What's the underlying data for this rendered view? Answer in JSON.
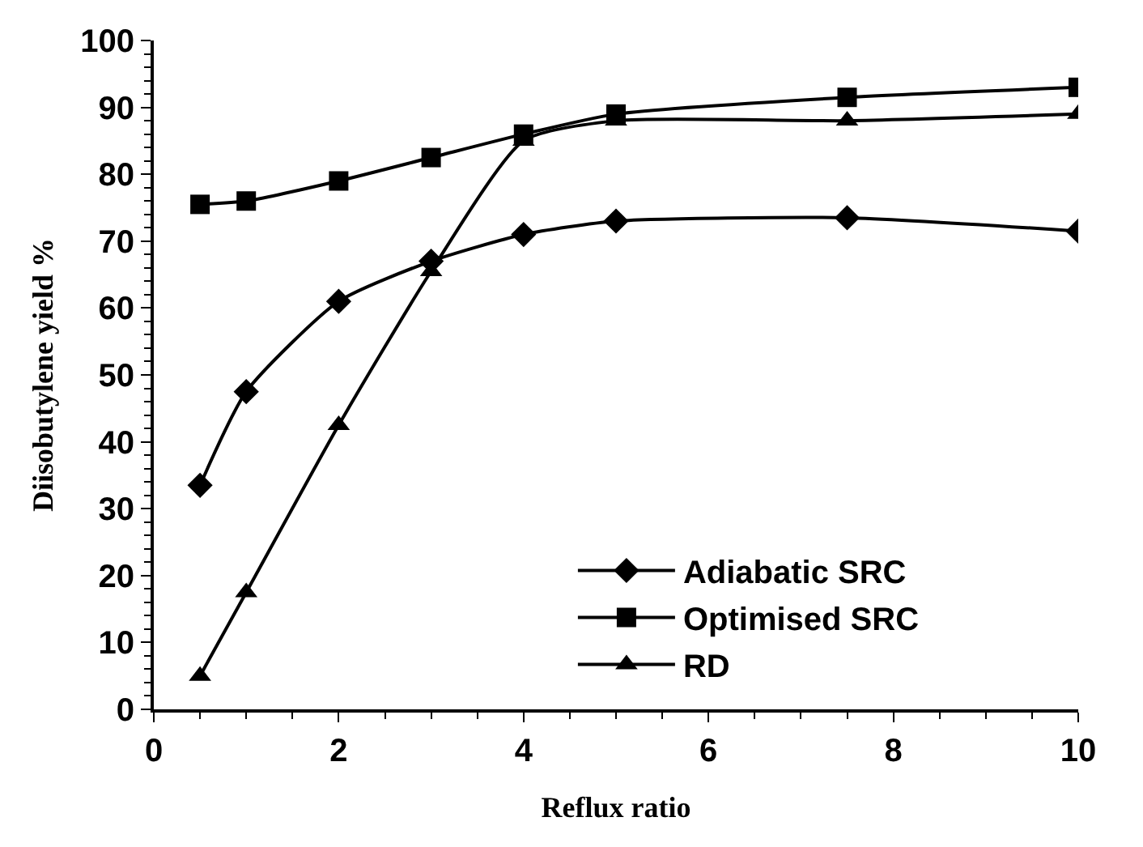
{
  "chart_data": {
    "type": "line",
    "xlabel": "Reflux ratio",
    "ylabel": "Diisobutylene yield %",
    "x": [
      0.5,
      1,
      2,
      3,
      4,
      5,
      7.5,
      10
    ],
    "series": [
      {
        "name": "Adiabatic SRC",
        "color": "#000000",
        "marker": "diamond",
        "values": [
          33.5,
          47.5,
          61,
          67,
          71,
          73,
          73.5,
          71.5
        ]
      },
      {
        "name": "Optimised SRC",
        "color": "#000000",
        "marker": "square",
        "values": [
          75.5,
          76,
          79,
          82.5,
          86,
          89,
          91.5,
          93
        ]
      },
      {
        "name": "RD",
        "color": "#000000",
        "marker": "triangle",
        "values": [
          5,
          17.5,
          42.5,
          65.5,
          85,
          88,
          88,
          89
        ]
      }
    ],
    "xlim": [
      0,
      10
    ],
    "xticks": [
      0,
      2,
      4,
      6,
      8,
      10
    ],
    "ylim": [
      0,
      100
    ],
    "yticks": [
      0,
      10,
      20,
      30,
      40,
      50,
      60,
      70,
      80,
      90,
      100
    ],
    "grid": false,
    "legend": "bottom right",
    "line_style": "solid"
  }
}
